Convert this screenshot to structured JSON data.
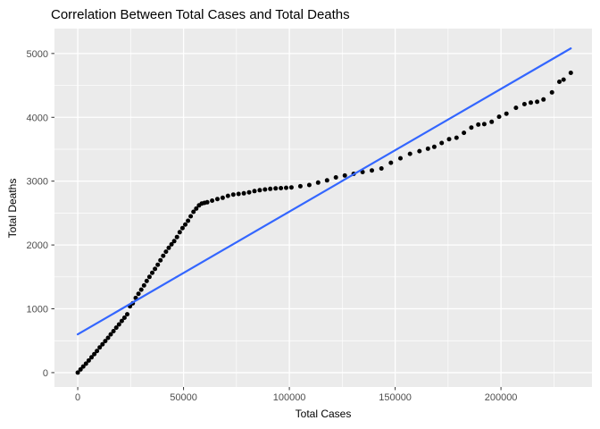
{
  "page": {
    "title": "Correlation Between Total Cases and Total Deaths"
  },
  "chart_data": {
    "type": "scatter",
    "title": "Correlation Between Total Cases and Total Deaths",
    "xlabel": "Total Cases",
    "ylabel": "Total Deaths",
    "x_ticks": [
      0,
      50000,
      100000,
      150000,
      200000
    ],
    "y_ticks": [
      0,
      1000,
      2000,
      3000,
      4000,
      5000
    ],
    "x_minor_step": 25000,
    "y_minor_step": 500,
    "xlim": [
      -11000,
      243000
    ],
    "ylim": [
      -225,
      5390
    ],
    "grid": true,
    "legend": false,
    "colors": {
      "panel_bg": "#EBEBEB",
      "grid": "#FFFFFF",
      "point": "#000000",
      "trend": "#3366FF",
      "tick_text": "#4D4D4D",
      "tick_mark": "#333333"
    },
    "trend_line": {
      "method": "linear",
      "start": [
        0,
        600
      ],
      "end": [
        233000,
        5080
      ]
    },
    "points": [
      [
        0,
        0
      ],
      [
        1300,
        50
      ],
      [
        2600,
        95
      ],
      [
        3900,
        140
      ],
      [
        5200,
        190
      ],
      [
        6500,
        240
      ],
      [
        7800,
        290
      ],
      [
        9100,
        340
      ],
      [
        10400,
        395
      ],
      [
        11700,
        445
      ],
      [
        13000,
        495
      ],
      [
        14300,
        545
      ],
      [
        15600,
        600
      ],
      [
        16900,
        650
      ],
      [
        18200,
        705
      ],
      [
        19500,
        755
      ],
      [
        20800,
        810
      ],
      [
        22100,
        860
      ],
      [
        23400,
        915
      ],
      [
        24700,
        1040
      ],
      [
        26000,
        1085
      ],
      [
        27400,
        1170
      ],
      [
        28700,
        1235
      ],
      [
        30000,
        1300
      ],
      [
        31300,
        1365
      ],
      [
        32600,
        1435
      ],
      [
        33900,
        1500
      ],
      [
        35200,
        1565
      ],
      [
        36500,
        1625
      ],
      [
        37800,
        1690
      ],
      [
        39100,
        1760
      ],
      [
        40400,
        1830
      ],
      [
        41700,
        1895
      ],
      [
        43000,
        1955
      ],
      [
        44300,
        2010
      ],
      [
        45600,
        2060
      ],
      [
        46900,
        2125
      ],
      [
        48200,
        2200
      ],
      [
        49500,
        2265
      ],
      [
        50800,
        2320
      ],
      [
        52100,
        2380
      ],
      [
        53400,
        2450
      ],
      [
        54700,
        2520
      ],
      [
        56000,
        2570
      ],
      [
        57300,
        2620
      ],
      [
        58600,
        2650
      ],
      [
        59900,
        2660
      ],
      [
        61200,
        2670
      ],
      [
        63500,
        2695
      ],
      [
        66000,
        2720
      ],
      [
        68500,
        2740
      ],
      [
        71000,
        2770
      ],
      [
        73500,
        2790
      ],
      [
        76000,
        2800
      ],
      [
        78500,
        2810
      ],
      [
        81000,
        2825
      ],
      [
        83500,
        2845
      ],
      [
        86000,
        2858
      ],
      [
        88500,
        2870
      ],
      [
        91000,
        2880
      ],
      [
        93500,
        2886
      ],
      [
        96000,
        2891
      ],
      [
        98500,
        2896
      ],
      [
        101000,
        2902
      ],
      [
        105200,
        2920
      ],
      [
        109400,
        2940
      ],
      [
        113600,
        2978
      ],
      [
        117800,
        3012
      ],
      [
        122000,
        3058
      ],
      [
        126200,
        3088
      ],
      [
        130400,
        3114
      ],
      [
        134600,
        3142
      ],
      [
        139000,
        3168
      ],
      [
        143500,
        3198
      ],
      [
        148000,
        3288
      ],
      [
        152500,
        3358
      ],
      [
        157000,
        3428
      ],
      [
        161500,
        3470
      ],
      [
        165500,
        3508
      ],
      [
        168500,
        3538
      ],
      [
        172000,
        3598
      ],
      [
        175500,
        3658
      ],
      [
        179000,
        3680
      ],
      [
        182500,
        3758
      ],
      [
        186000,
        3840
      ],
      [
        189300,
        3886
      ],
      [
        192100,
        3893
      ],
      [
        195600,
        3930
      ],
      [
        199100,
        4010
      ],
      [
        202600,
        4057
      ],
      [
        207100,
        4150
      ],
      [
        211100,
        4207
      ],
      [
        214100,
        4230
      ],
      [
        217100,
        4243
      ],
      [
        220100,
        4280
      ],
      [
        224100,
        4390
      ],
      [
        227600,
        4557
      ],
      [
        229600,
        4590
      ],
      [
        233000,
        4697
      ]
    ]
  }
}
